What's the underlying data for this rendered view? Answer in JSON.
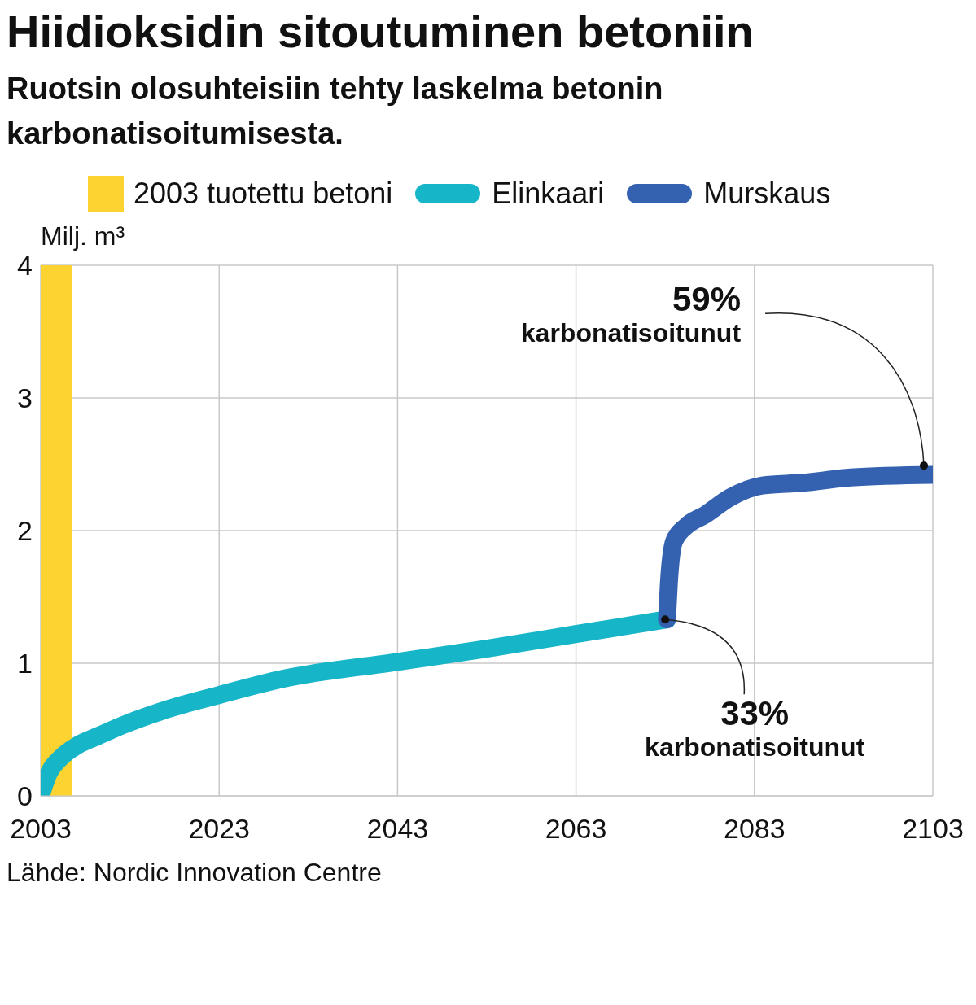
{
  "chart_data": {
    "type": "line",
    "title": "Hiidioksidin sitoutuminen betoniin",
    "subtitle": "Ruotsin olosuhteisiin tehty laskelma betonin karbonatisoitumisesta.",
    "ylabel": "Milj. m³",
    "series": [
      {
        "name": "Elinkaari",
        "color": "#16b5c8",
        "x": [
          2003,
          2003.9,
          2005.3,
          2007.1,
          2009.4,
          2012.1,
          2016.6,
          2023,
          2030,
          2043,
          2053,
          2063,
          2073.2
        ],
        "values": [
          0,
          0.17,
          0.29,
          0.38,
          0.45,
          0.53,
          0.64,
          0.76,
          0.88,
          1.01,
          1.11,
          1.22,
          1.33
        ]
      },
      {
        "name": "Murskaus",
        "color": "#3462b1",
        "x": [
          2073.2,
          2073.4,
          2074,
          2075.3,
          2077.5,
          2080.3,
          2083.9,
          2088.4,
          2093.8,
          2103
        ],
        "values": [
          1.33,
          1.59,
          1.92,
          2.03,
          2.12,
          2.25,
          2.34,
          2.36,
          2.4,
          2.42
        ]
      }
    ],
    "bands": [
      {
        "axis": "x",
        "from": 2003,
        "to": 2006.5,
        "label": "2003 tuotettu betoni",
        "color": "#fdd331"
      }
    ],
    "xlim": [
      2003,
      2103
    ],
    "xticks": [
      2003,
      2023,
      2043,
      2063,
      2083,
      2103
    ],
    "ylim": [
      0,
      4
    ],
    "yticks": [
      0,
      1,
      2,
      3,
      4
    ],
    "grid": true,
    "legend": "top left",
    "marker": "none",
    "line_style": "solid",
    "annotations": [
      {
        "text": "59%\nkarbonatisoitunut",
        "x": 2102,
        "y": 2.49
      },
      {
        "text": "33%\nkarbonatisoitunut",
        "x": 2073,
        "y": 1.33
      },
      "Lähde: Nordic Innovation Centre"
    ]
  }
}
